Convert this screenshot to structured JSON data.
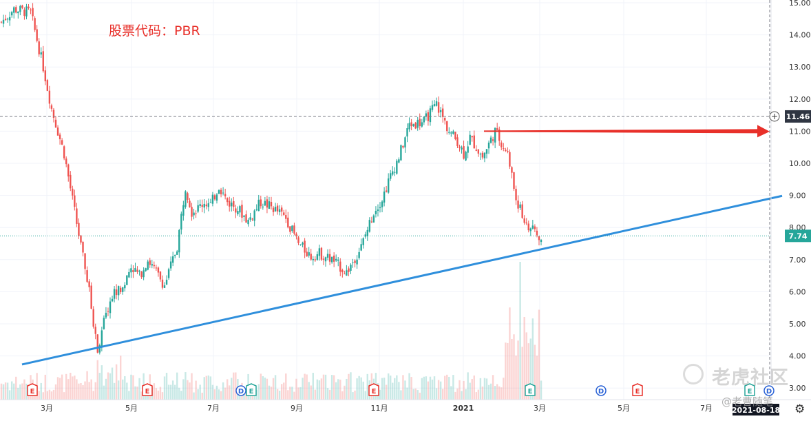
{
  "title": "股票代码：PBR",
  "watermark": {
    "brand": "老虎社区",
    "author": "@老曹随笔",
    "icon": "tiger-logo-icon"
  },
  "settings_icon": "gear-icon",
  "chart_data": {
    "type": "candlestick",
    "symbol": "PBR",
    "y_ticks": [
      "15.00",
      "14.00",
      "13.00",
      "12.00",
      "11.00",
      "10.00",
      "9.00",
      "8.00",
      "7.00",
      "6.00",
      "5.00",
      "4.00",
      "3.00"
    ],
    "ylim": [
      2.75,
      15.1
    ],
    "x_ticks": [
      "3月",
      "5月",
      "7月",
      "9月",
      "11月",
      "2021",
      "3月",
      "5月",
      "7月"
    ],
    "date_axis_label": "2021-08-18",
    "crosshair_price": "11.46",
    "last_price": "7.74",
    "colors": {
      "up": "#26a69a",
      "down": "#ef5350",
      "trendline": "#2f8fdc",
      "arrow": "#e8302a",
      "last_price_badge": "#26a69a",
      "crosshair_badge": "#2f3542"
    },
    "series": {
      "anchors_t": [
        0,
        6,
        14,
        20,
        24,
        30,
        35,
        38,
        42,
        44,
        46,
        48,
        51,
        54,
        58,
        62,
        66,
        70,
        74,
        78,
        82,
        84,
        88,
        91,
        94,
        97,
        100,
        104,
        108,
        113,
        118,
        124,
        130,
        136,
        142,
        148,
        152,
        158,
        165,
        172,
        178,
        182,
        186,
        190,
        195,
        202,
        208,
        214,
        218,
        221,
        224,
        230,
        236,
        242,
        246,
        250,
        254,
        256,
        258
      ],
      "anchors_price": [
        14.4,
        14.8,
        14.7,
        13.0,
        11.7,
        10.3,
        8.5,
        7.4,
        6.0,
        5.0,
        4.2,
        4.8,
        5.5,
        6.0,
        6.1,
        6.8,
        6.5,
        7.0,
        6.6,
        6.2,
        7.0,
        7.4,
        9.3,
        8.5,
        8.6,
        8.8,
        8.7,
        9.3,
        8.8,
        8.6,
        8.2,
        8.8,
        8.6,
        8.3,
        7.5,
        7.1,
        7.2,
        7.0,
        6.6,
        7.4,
        8.5,
        8.9,
        9.6,
        10.2,
        11.2,
        11.3,
        11.85,
        11.0,
        10.7,
        10.3,
        10.8,
        10.2,
        11.0,
        10.3,
        8.9,
        8.2,
        7.9,
        7.74,
        7.6
      ],
      "trading_days": 258
    },
    "trendline": {
      "from_price": 3.8,
      "to_price": 9.05
    },
    "arrow_price": 11.0,
    "crosshair_line_price": 11.46,
    "events": [
      {
        "type": "E",
        "tick": "3月",
        "label": "E",
        "color": "#e8302a"
      },
      {
        "type": "E",
        "tick": "5月",
        "label": "E",
        "color": "#e8302a"
      },
      {
        "type": "D",
        "tick": "7月",
        "label": "D",
        "color": "#2b63d6"
      },
      {
        "type": "E",
        "tick": "7月",
        "label": "E",
        "color": "#26a69a"
      },
      {
        "type": "E",
        "tick": "11月",
        "label": "E",
        "color": "#e8302a"
      },
      {
        "type": "E",
        "tick": "3月",
        "label": "E",
        "color": "#26a69a"
      },
      {
        "type": "D",
        "tick": "5月",
        "label": "D",
        "color": "#2b63d6"
      },
      {
        "type": "E",
        "tick": "5月",
        "label": "E",
        "color": "#e8302a"
      },
      {
        "type": "E",
        "tick": "7月",
        "label": "E",
        "color": "#26a69a"
      },
      {
        "type": "D",
        "tick": "7月",
        "label": "D",
        "color": "#2b63d6"
      }
    ]
  }
}
